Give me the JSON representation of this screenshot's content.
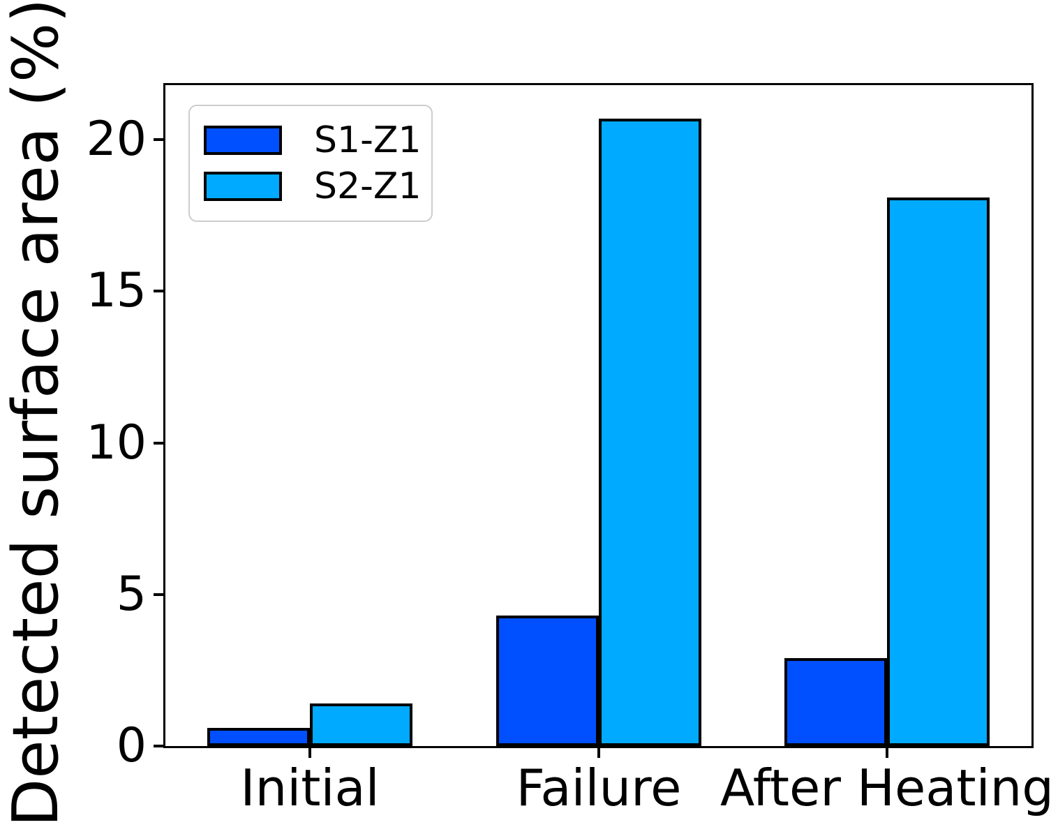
{
  "figure": {
    "background": "#ffffff",
    "axis_color": "#000000"
  },
  "legend": {
    "position": "upper left",
    "border_color": "#cccccc"
  },
  "chart_data": {
    "type": "bar",
    "title": "",
    "xlabel": "",
    "ylabel": "Detected surface area (%)",
    "categories": [
      "Initial",
      "Failure",
      "After Heating"
    ],
    "series": [
      {
        "name": "S1-Z1",
        "color": "#0050FF",
        "values": [
          0.6,
          4.3,
          2.9
        ]
      },
      {
        "name": "S2-Z1",
        "color": "#00AAFF",
        "values": [
          1.4,
          20.7,
          18.1
        ]
      }
    ],
    "bar_edge_color": "#000000",
    "ylim": [
      0,
      21.8
    ],
    "yticks": [
      0,
      5,
      10,
      15,
      20
    ],
    "grid": false,
    "legend_position": "upper left",
    "legend_entries": [
      "S1-Z1",
      "S2-Z1"
    ]
  }
}
